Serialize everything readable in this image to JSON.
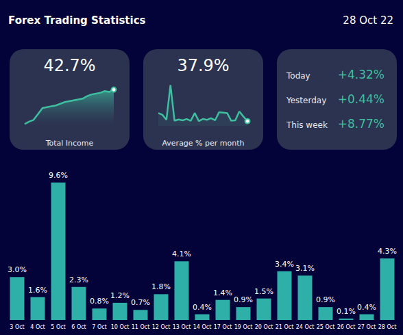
{
  "header": {
    "title": "Forex Trading Statistics",
    "date": "28 Oct 22"
  },
  "cards": [
    {
      "value_text": "42.7%",
      "caption": "Total Income",
      "chart_data": {
        "type": "area",
        "color": "#3dbfa0",
        "marker": "circle",
        "tick_labels": false,
        "grid": false,
        "values": [
          2,
          5,
          7,
          14,
          21,
          22,
          23,
          24,
          26,
          28,
          29,
          30,
          31,
          32,
          35,
          37,
          38,
          39,
          41,
          40,
          42.7
        ]
      }
    },
    {
      "value_text": "37.9%",
      "caption": "Average % per month",
      "chart_data": {
        "type": "line",
        "color": "#3dbfa0",
        "marker": "circle",
        "tick_labels": false,
        "grid": false,
        "values": [
          3.0,
          2.6,
          1.4,
          9.6,
          1.2,
          1.5,
          1.3,
          1.6,
          1.2,
          3.0,
          1.1,
          1.6,
          1.4,
          1.8,
          1.3,
          3.2,
          3.1,
          3.0,
          1.2,
          1.3,
          3.4,
          2.2,
          1.1
        ]
      }
    }
  ],
  "stats": [
    {
      "label": "Today",
      "value": "+4.32%"
    },
    {
      "label": "Yesterday",
      "value": "+0.44%"
    },
    {
      "label": "This week",
      "value": "+8.77%"
    }
  ],
  "chart_data": {
    "type": "bar",
    "color": "#2eb0a8",
    "data_labels": true,
    "tick_labels": "x",
    "grid": false,
    "categories": [
      "3 Oct",
      "4 Oct",
      "5 Oct",
      "6 Oct",
      "7 Oct",
      "10 Oct",
      "11 Oct",
      "12 Oct",
      "13 Oct",
      "14 Oct",
      "17 Oct",
      "19 Oct",
      "20 Oct",
      "21 Oct",
      "24 Oct",
      "25 Oct",
      "26 Oct",
      "27 Oct",
      "28 Oct"
    ],
    "values": [
      3.0,
      1.6,
      9.6,
      2.3,
      0.8,
      1.2,
      0.7,
      1.8,
      4.1,
      0.4,
      1.4,
      0.9,
      1.5,
      3.4,
      3.1,
      0.9,
      0.1,
      0.4,
      4.3
    ],
    "value_labels": [
      "3.0%",
      "1.6%",
      "9.6%",
      "2.3%",
      "0.8%",
      "1.2%",
      "0.7%",
      "1.8%",
      "4.1%",
      "0.4%",
      "1.4%",
      "0.9%",
      "1.5%",
      "3.4%",
      "3.1%",
      "0.9%",
      "0.1%",
      "0.4%",
      "4.3%"
    ],
    "ylim": [
      0,
      9.6
    ]
  }
}
